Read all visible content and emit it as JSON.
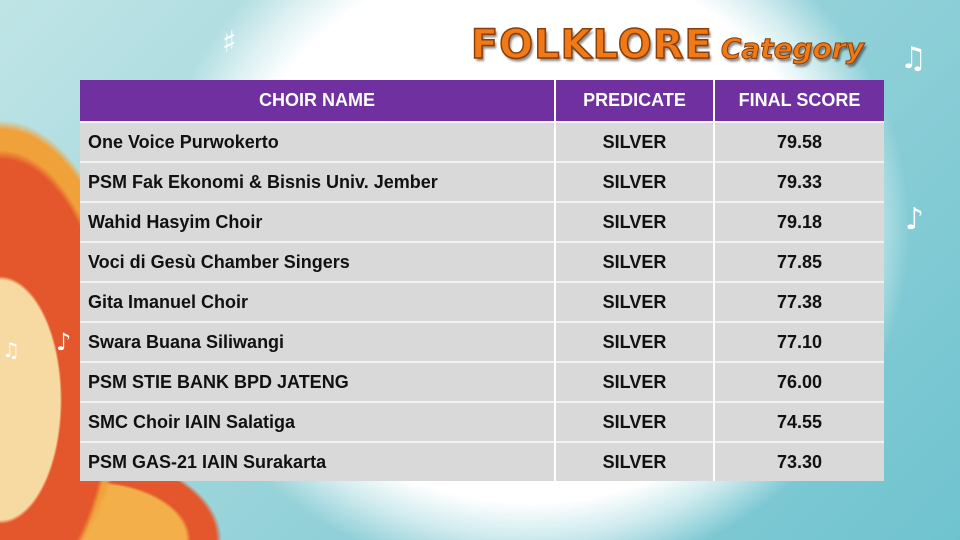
{
  "title": {
    "main": "FOLKLORE",
    "sub": "Category"
  },
  "colors": {
    "header_bg": "#7030a0",
    "row_bg": "#d9d9d9",
    "title": "#ef7a17"
  },
  "table": {
    "headers": [
      "CHOIR NAME",
      "PREDICATE",
      "FINAL SCORE"
    ],
    "rows": [
      {
        "name": "One Voice Purwokerto",
        "predicate": "SILVER",
        "score": "79.58"
      },
      {
        "name": "PSM Fak Ekonomi & Bisnis Univ. Jember",
        "predicate": "SILVER",
        "score": "79.33"
      },
      {
        "name": "Wahid Hasyim Choir",
        "predicate": "SILVER",
        "score": "79.18"
      },
      {
        "name": "Voci di Gesù Chamber Singers",
        "predicate": "SILVER",
        "score": "77.85"
      },
      {
        "name": "Gita Imanuel Choir",
        "predicate": "SILVER",
        "score": "77.38"
      },
      {
        "name": "Swara Buana Siliwangi",
        "predicate": "SILVER",
        "score": "77.10"
      },
      {
        "name": "PSM STIE BANK BPD JATENG",
        "predicate": "SILVER",
        "score": "76.00"
      },
      {
        "name": "SMC Choir IAIN Salatiga",
        "predicate": "SILVER",
        "score": "74.55"
      },
      {
        "name": "PSM GAS-21 IAIN Surakarta",
        "predicate": "SILVER",
        "score": "73.30"
      }
    ]
  }
}
